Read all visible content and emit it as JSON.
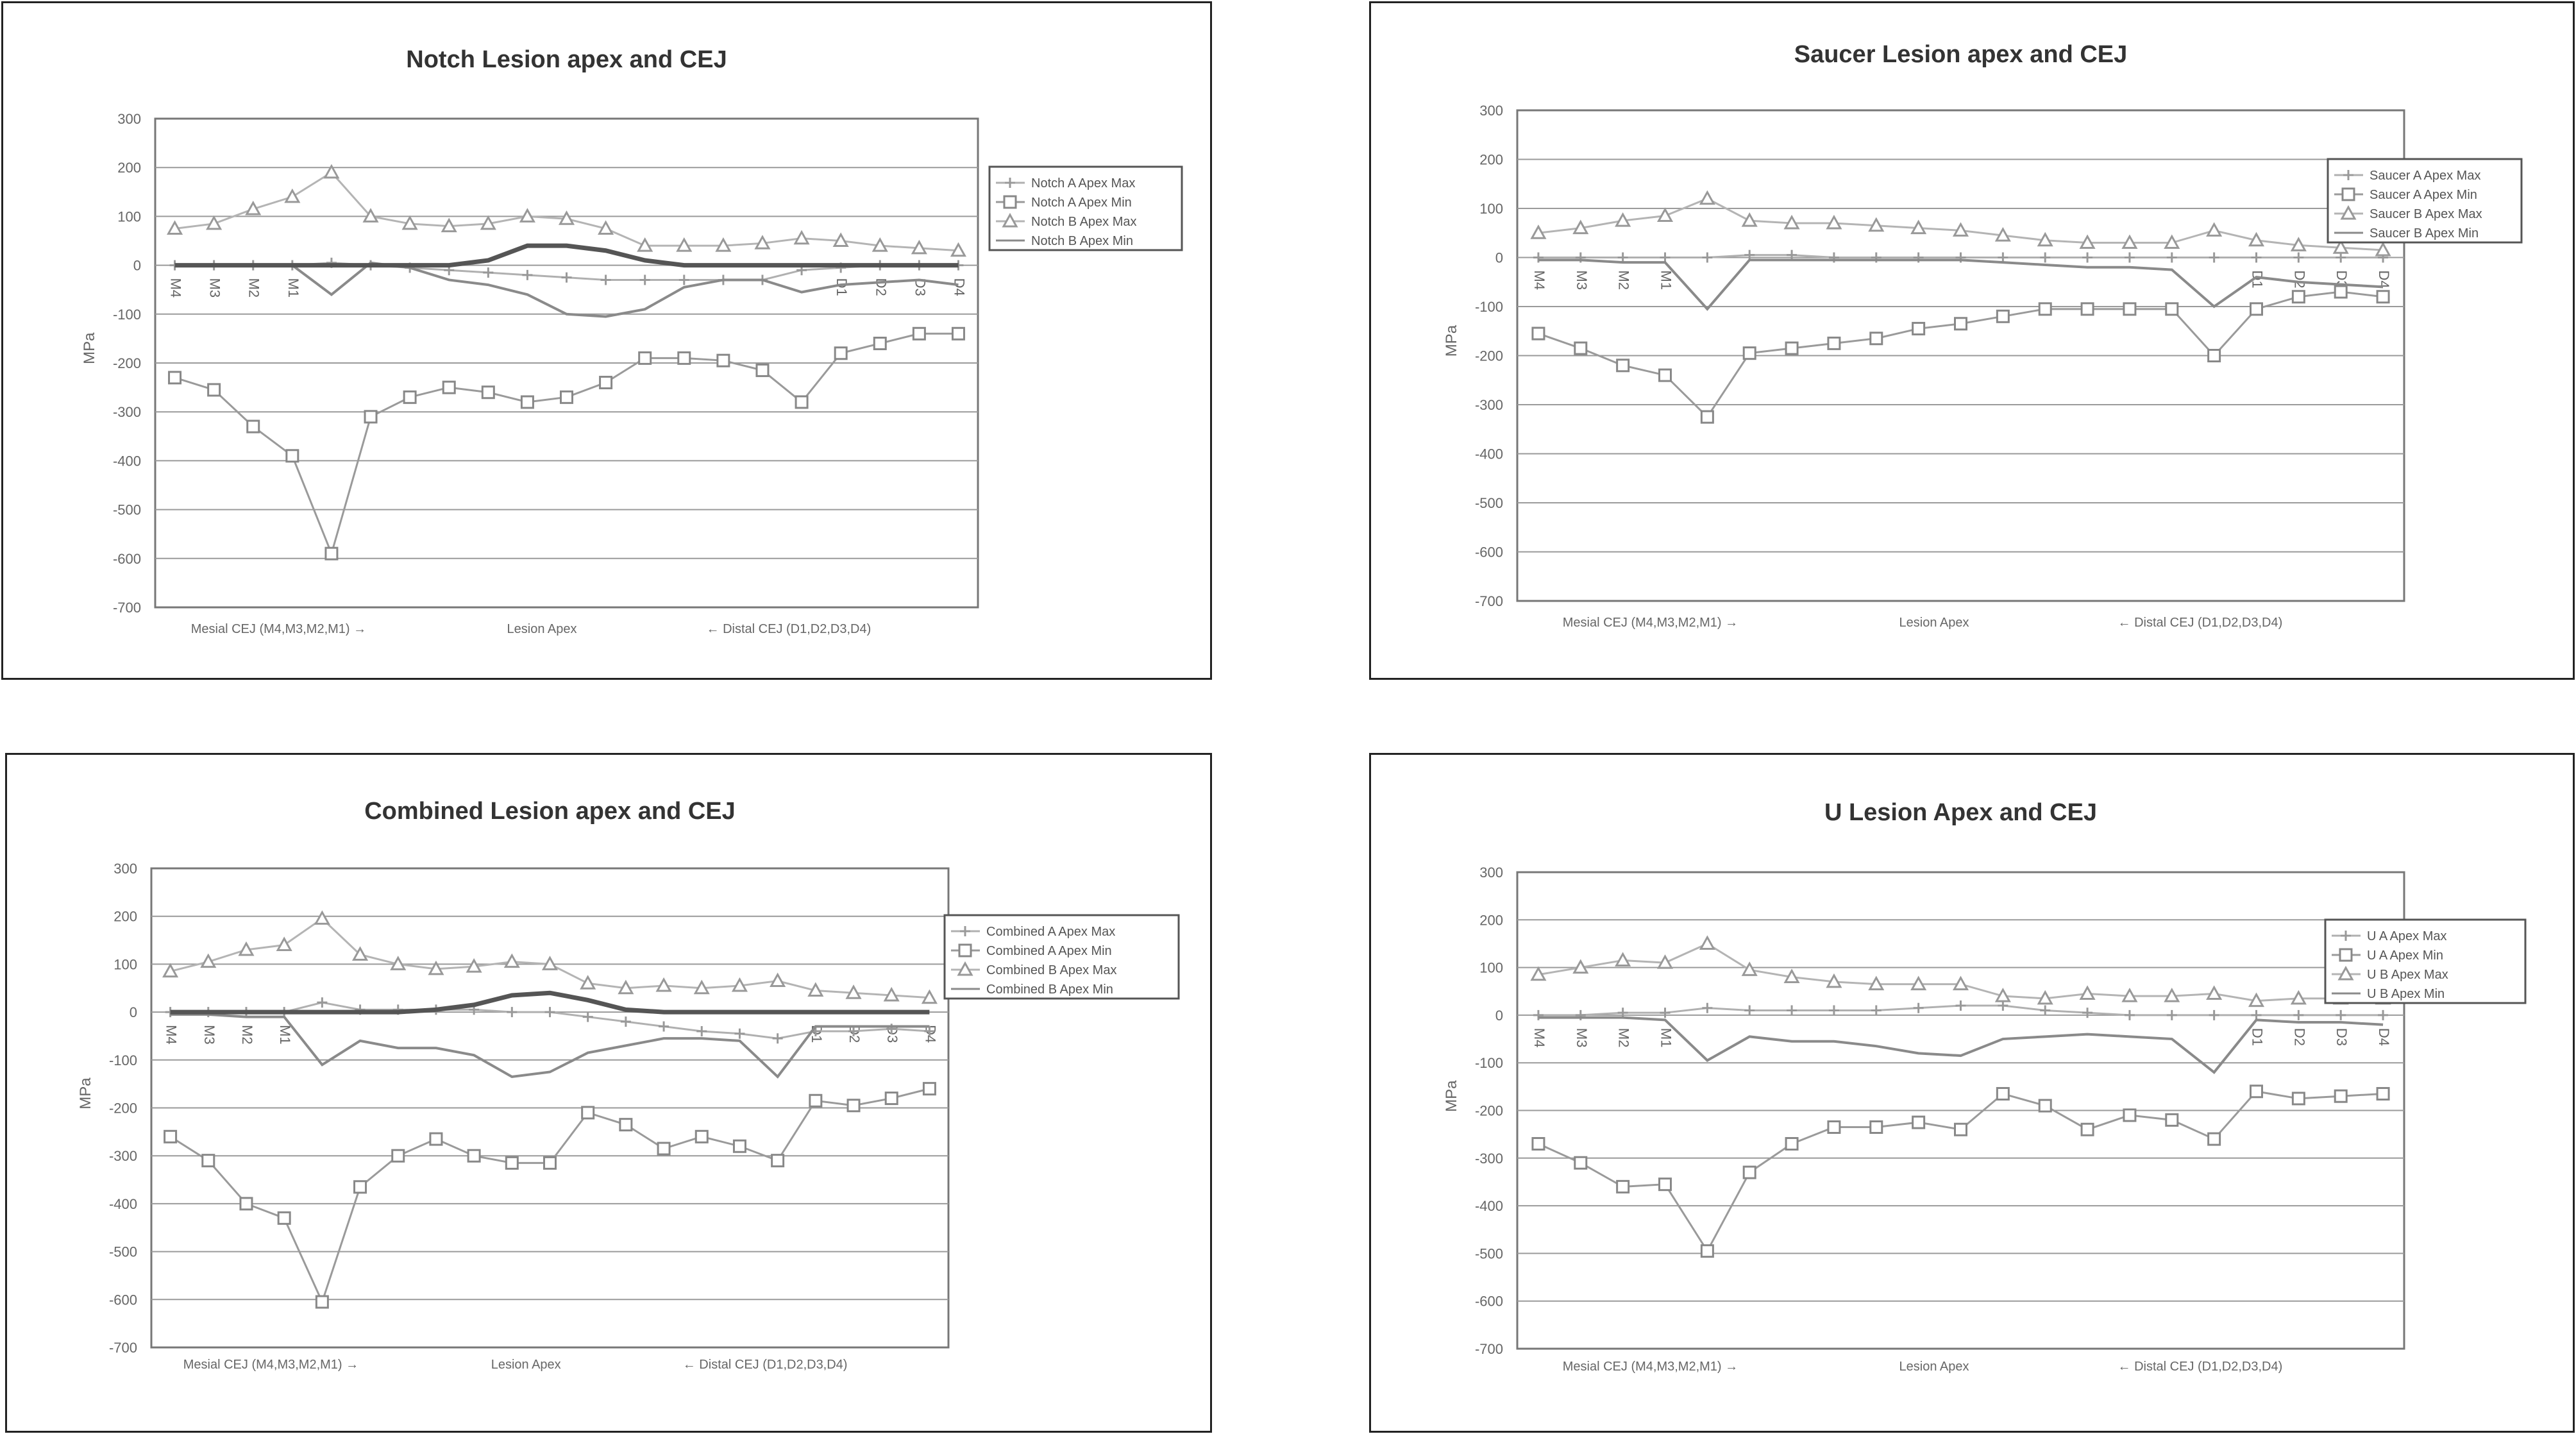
{
  "chart_data": [
    {
      "type": "line",
      "title": "Notch Lesion apex and CEJ",
      "ylabel": "MPa",
      "ylim": [
        -700,
        300
      ],
      "yticks": [
        300,
        200,
        100,
        0,
        -100,
        -200,
        -300,
        -400,
        -500,
        -600,
        -700
      ],
      "x_group_labels": [
        "Mesial CEJ (M4,M3,M2,M1) →",
        "Lesion Apex",
        "← Distal CEJ (D1,D2,D3,D4)"
      ],
      "categories": [
        "M4",
        "M3",
        "M2",
        "M1",
        "",
        "",
        "",
        "",
        "",
        "",
        "",
        "",
        "",
        "",
        "",
        "",
        "",
        "D1",
        "D2",
        "D3",
        "D4"
      ],
      "legend": [
        "Notch A Apex Max",
        "Notch A Apex Min",
        "Notch B Apex Max",
        "Notch B Apex Min"
      ],
      "series": [
        {
          "name": "Notch A Apex Max",
          "marker": "plus",
          "values": [
            0,
            0,
            0,
            0,
            5,
            0,
            -5,
            -10,
            -15,
            -20,
            -25,
            -30,
            -30,
            -30,
            -30,
            -30,
            -10,
            -5,
            0,
            0,
            0
          ]
        },
        {
          "name": "Notch A Apex Min",
          "marker": "square",
          "values": [
            -230,
            -255,
            -330,
            -390,
            -590,
            -310,
            -270,
            -250,
            -260,
            -280,
            -270,
            -240,
            -190,
            -190,
            -195,
            -215,
            -280,
            -180,
            -160,
            -140,
            -140
          ]
        },
        {
          "name": "Notch B Apex Max",
          "marker": "triangle",
          "values": [
            75,
            85,
            115,
            140,
            190,
            100,
            85,
            80,
            85,
            100,
            95,
            75,
            40,
            40,
            40,
            45,
            55,
            50,
            40,
            35,
            30
          ]
        },
        {
          "name": "Notch B Apex Min",
          "marker": "line",
          "values": [
            0,
            0,
            0,
            0,
            -60,
            5,
            -5,
            -30,
            -40,
            -60,
            -100,
            -105,
            -90,
            -45,
            -30,
            -30,
            -55,
            -40,
            -35,
            -30,
            -40
          ]
        },
        {
          "name": "",
          "marker": "line-bold",
          "values": [
            0,
            0,
            0,
            0,
            0,
            0,
            0,
            0,
            10,
            40,
            40,
            30,
            10,
            0,
            0,
            0,
            0,
            0,
            0,
            0,
            0
          ]
        }
      ]
    },
    {
      "type": "line",
      "title": "Saucer Lesion apex and CEJ",
      "ylabel": "MPa",
      "ylim": [
        -700,
        300
      ],
      "yticks": [
        300,
        200,
        100,
        0,
        -100,
        -200,
        -300,
        -400,
        -500,
        -600,
        -700
      ],
      "x_group_labels": [
        "Mesial CEJ (M4,M3,M2,M1) →",
        "Lesion Apex",
        "← Distal CEJ (D1,D2,D3,D4)"
      ],
      "categories": [
        "M4",
        "M3",
        "M2",
        "M1",
        "",
        "",
        "",
        "",
        "",
        "",
        "",
        "",
        "",
        "",
        "",
        "",
        "",
        "D1",
        "D2",
        "D3",
        "D4"
      ],
      "legend": [
        "Saucer A Apex Max",
        "Saucer A Apex Min",
        "Saucer B Apex Max",
        "Saucer B Apex Min"
      ],
      "series": [
        {
          "name": "Saucer A Apex Max",
          "marker": "plus",
          "values": [
            0,
            0,
            0,
            0,
            0,
            5,
            5,
            0,
            0,
            0,
            0,
            0,
            0,
            0,
            0,
            0,
            0,
            0,
            0,
            0,
            0
          ]
        },
        {
          "name": "Saucer A Apex Min",
          "marker": "square",
          "values": [
            -155,
            -185,
            -220,
            -240,
            -325,
            -195,
            -185,
            -175,
            -165,
            -145,
            -135,
            -120,
            -105,
            -105,
            -105,
            -105,
            -200,
            -105,
            -80,
            -70,
            -80
          ]
        },
        {
          "name": "Saucer B Apex Max",
          "marker": "triangle",
          "values": [
            50,
            60,
            75,
            85,
            120,
            75,
            70,
            70,
            65,
            60,
            55,
            45,
            35,
            30,
            30,
            30,
            55,
            35,
            25,
            20,
            15
          ]
        },
        {
          "name": "Saucer B Apex Min",
          "marker": "line",
          "values": [
            -5,
            -5,
            -10,
            -10,
            -105,
            -5,
            -5,
            -5,
            -5,
            -5,
            -5,
            -10,
            -15,
            -20,
            -20,
            -25,
            -100,
            -40,
            -50,
            -55,
            -60
          ]
        }
      ]
    },
    {
      "type": "line",
      "title": "Combined Lesion apex and CEJ",
      "ylabel": "MPa",
      "ylim": [
        -700,
        300
      ],
      "yticks": [
        300,
        200,
        100,
        0,
        -100,
        -200,
        -300,
        -400,
        -500,
        -600,
        -700
      ],
      "x_group_labels": [
        "Mesial CEJ (M4,M3,M2,M1) →",
        "Lesion Apex",
        "← Distal CEJ (D1,D2,D3,D4)"
      ],
      "categories": [
        "M4",
        "M3",
        "M2",
        "M1",
        "",
        "",
        "",
        "",
        "",
        "",
        "",
        "",
        "",
        "",
        "",
        "",
        "",
        "D1",
        "D2",
        "D3",
        "D4"
      ],
      "legend": [
        "Combined A Apex Max",
        "Combined A Apex Min",
        "Combined B Apex Max",
        "Combined B Apex Min"
      ],
      "series": [
        {
          "name": "Combined A Apex Max",
          "marker": "plus",
          "values": [
            0,
            0,
            0,
            0,
            20,
            5,
            5,
            5,
            5,
            0,
            0,
            -10,
            -20,
            -30,
            -40,
            -45,
            -55,
            -40,
            -40,
            -35,
            -40
          ]
        },
        {
          "name": "Combined A Apex Min",
          "marker": "square",
          "values": [
            -260,
            -310,
            -400,
            -430,
            -605,
            -365,
            -300,
            -265,
            -300,
            -315,
            -315,
            -210,
            -235,
            -285,
            -260,
            -280,
            -310,
            -185,
            -195,
            -180,
            -160
          ]
        },
        {
          "name": "Combined B Apex Max",
          "marker": "triangle",
          "values": [
            85,
            105,
            130,
            140,
            195,
            120,
            100,
            90,
            95,
            105,
            100,
            60,
            50,
            55,
            50,
            55,
            65,
            45,
            40,
            35,
            30
          ]
        },
        {
          "name": "Combined B Apex Min",
          "marker": "line",
          "values": [
            -5,
            -5,
            -10,
            -10,
            -110,
            -60,
            -75,
            -75,
            -90,
            -135,
            -125,
            -85,
            -70,
            -55,
            -55,
            -60,
            -135,
            -30,
            -30,
            -30,
            -30
          ]
        },
        {
          "name": "",
          "marker": "line-bold",
          "values": [
            0,
            0,
            0,
            0,
            0,
            0,
            0,
            5,
            15,
            35,
            40,
            25,
            5,
            0,
            0,
            0,
            0,
            0,
            0,
            0,
            0
          ]
        }
      ]
    },
    {
      "type": "line",
      "title": "U Lesion Apex and CEJ",
      "ylabel": "MPa",
      "ylim": [
        -700,
        300
      ],
      "yticks": [
        300,
        200,
        100,
        0,
        -100,
        -200,
        -300,
        -400,
        -500,
        -600,
        -700
      ],
      "x_group_labels": [
        "Mesial CEJ (M4,M3,M2,M1) →",
        "Lesion Apex",
        "← Distal CEJ (D1,D2,D3,D4)"
      ],
      "categories": [
        "M4",
        "M3",
        "M2",
        "M1",
        "",
        "",
        "",
        "",
        "",
        "",
        "",
        "",
        "",
        "",
        "",
        "",
        "",
        "D1",
        "D2",
        "D3",
        "D4"
      ],
      "legend": [
        "U A Apex Max",
        "U A Apex Min",
        "U B Apex Max",
        "U B Apex Min"
      ],
      "series": [
        {
          "name": "U A Apex Max",
          "marker": "plus",
          "values": [
            0,
            0,
            5,
            5,
            15,
            10,
            10,
            10,
            10,
            15,
            20,
            20,
            10,
            5,
            0,
            0,
            0,
            0,
            0,
            0,
            0
          ]
        },
        {
          "name": "U A Apex Min",
          "marker": "square",
          "values": [
            -270,
            -310,
            -360,
            -355,
            -495,
            -330,
            -270,
            -235,
            -235,
            -225,
            -240,
            -165,
            -190,
            -240,
            -210,
            -220,
            -260,
            -160,
            -175,
            -170,
            -165
          ]
        },
        {
          "name": "U B Apex Max",
          "marker": "triangle",
          "values": [
            85,
            100,
            115,
            110,
            150,
            95,
            80,
            70,
            65,
            65,
            65,
            40,
            35,
            45,
            40,
            40,
            45,
            30,
            35,
            35,
            35
          ]
        },
        {
          "name": "U B Apex Min",
          "marker": "line",
          "values": [
            -5,
            -5,
            -5,
            -10,
            -95,
            -45,
            -55,
            -55,
            -65,
            -80,
            -85,
            -50,
            -45,
            -40,
            -45,
            -50,
            -120,
            -10,
            -15,
            -15,
            -20
          ]
        }
      ]
    }
  ]
}
